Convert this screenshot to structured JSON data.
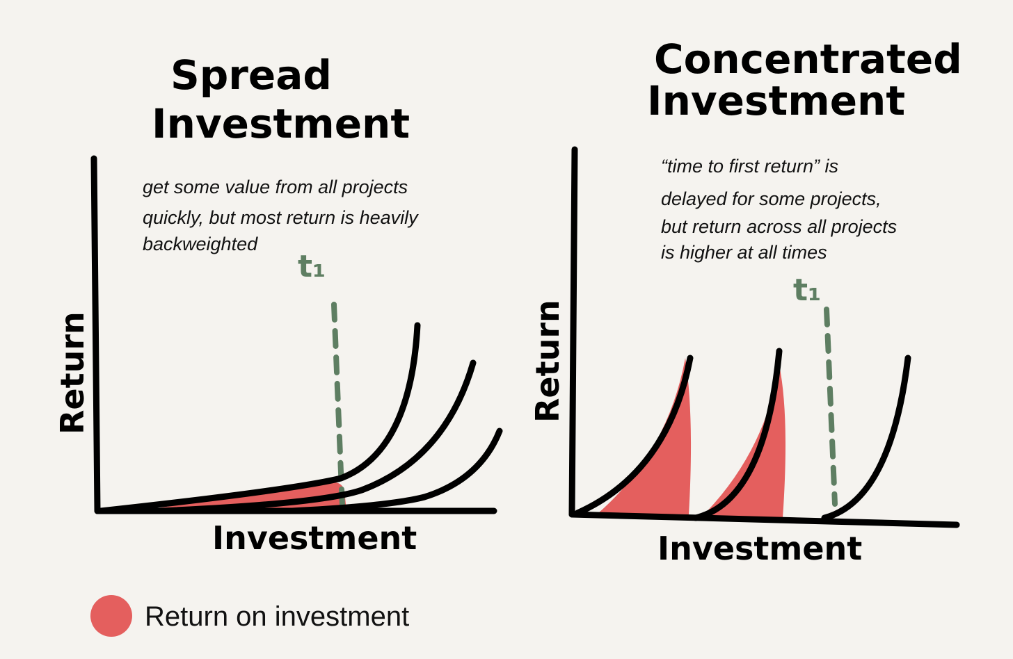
{
  "panels": [
    {
      "title_lines": [
        "Spread",
        "Investment"
      ],
      "annotation_lines": [
        "get some value from all projects",
        "quickly, but most return is heavily",
        "backweighted"
      ],
      "marker": "t₁",
      "y_axis_label": "Return",
      "x_axis_label": "Investment"
    },
    {
      "title_lines": [
        "Concentrated",
        "Investment"
      ],
      "annotation_lines": [
        "“time to first return” is",
        "delayed for some projects,",
        "but return across all projects",
        "is higher at all times"
      ],
      "marker": "t₁",
      "y_axis_label": "Return",
      "x_axis_label": "Investment"
    }
  ],
  "legend": {
    "label": "Return on investment"
  }
}
